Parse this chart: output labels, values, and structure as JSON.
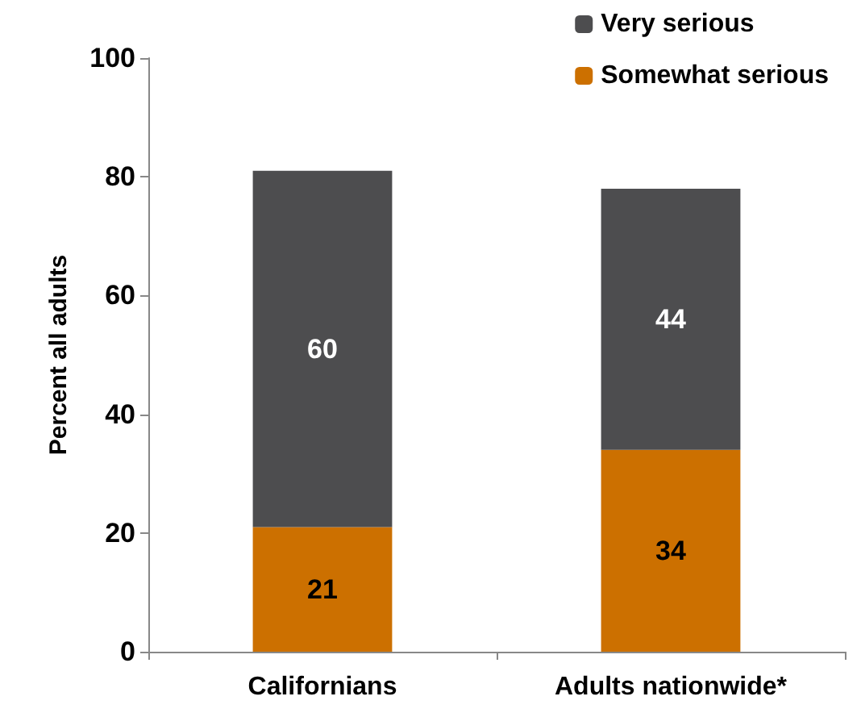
{
  "chart_data": {
    "type": "bar",
    "stacked": true,
    "ylabel": "Percent all adults",
    "categories": [
      "Californians",
      "Adults nationwide*"
    ],
    "series": [
      {
        "name": "Somewhat serious",
        "color": "#cc7000",
        "values": [
          21,
          34
        ]
      },
      {
        "name": "Very serious",
        "color": "#4d4d4f",
        "values": [
          60,
          44
        ]
      }
    ],
    "ylim": [
      0,
      100
    ],
    "yticks": [
      0,
      20,
      40,
      60,
      80,
      100
    ],
    "grid": false,
    "legend": "top right",
    "data_labels": true
  }
}
